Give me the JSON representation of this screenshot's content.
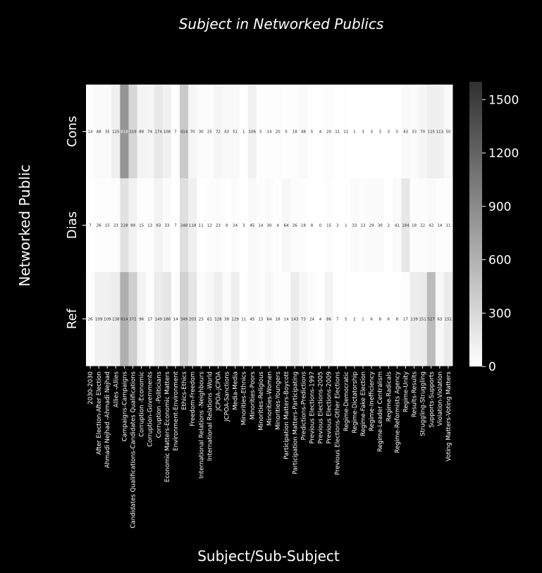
{
  "chart_data": {
    "type": "heatmap",
    "title": "Subject in Networked Publics",
    "xlabel": "Subject/Sub-Subject",
    "ylabel": "Networked Public",
    "rows": [
      "Cons",
      "Dias",
      "Ref"
    ],
    "categories": [
      "2030-2030",
      "After Election-After Election",
      "Ahmadi Nejhad -Ahmadi Nejhad",
      "Allies -Allies",
      "Campaigns-Campaigns",
      "Candidates Qualifications-Candidates Qualifications",
      "Corruption -Economic",
      "Corruption-Governments",
      "Corruption -Politicians",
      "Economic Matters-Economic Matters",
      "Environment-Environment",
      "Ethics-Ethics",
      "Freedom-Freedom",
      "International Relations -Neighbours",
      "International Relations -World",
      "JCPOA-JCPOA",
      "JCPOA-Sanctions",
      "Media-Media",
      "Minorities-Ethnics",
      "Minorities-Poors",
      "Minorities-Religious",
      "Minorities-Women",
      "Minorities-Youngers",
      "Participation Matters-Boycott",
      "Participation Matters-Participating",
      "Predictions-Predictions",
      "Previous Elections-1997",
      "Previous Elections-2005",
      "Previous Elections-2009",
      "Previous Elections-Other Elections",
      "Regime-Democratic",
      "Regime-Dictatorship",
      "Regime-Fake Election",
      "Regime-Inefficiency",
      "Regime-Leader Centralism",
      "Regime-Radicals",
      "Regime-Reformists Agency",
      "Regime-Unity",
      "Results-Results",
      "Struggling-Struggling",
      "Supports-Supports",
      "Violation-Violation",
      "Voting Matters-Voting Matters"
    ],
    "values": [
      [
        14,
        48,
        35,
        125,
        818,
        319,
        88,
        74,
        174,
        108,
        7,
        414,
        70,
        30,
        25,
        72,
        43,
        51,
        1,
        106,
        5,
        14,
        20,
        5,
        18,
        48,
        5,
        4,
        20,
        11,
        11,
        1,
        3,
        3,
        3,
        3,
        5,
        43,
        33,
        70,
        125,
        113,
        50
      ],
      [
        7,
        26,
        15,
        23,
        228,
        99,
        15,
        13,
        93,
        33,
        7,
        248,
        118,
        11,
        12,
        23,
        9,
        24,
        3,
        45,
        14,
        30,
        4,
        64,
        26,
        18,
        8,
        0,
        15,
        3,
        1,
        33,
        13,
        29,
        30,
        2,
        41,
        184,
        18,
        22,
        42,
        14,
        11
      ],
      [
        26,
        109,
        109,
        138,
        614,
        372,
        96,
        17,
        149,
        186,
        14,
        349,
        203,
        23,
        61,
        128,
        38,
        129,
        11,
        45,
        13,
        64,
        18,
        14,
        143,
        73,
        24,
        4,
        86,
        7,
        5,
        2,
        1,
        6,
        8,
        6,
        8,
        17,
        139,
        151,
        527,
        63,
        151
      ]
    ],
    "colorscale": {
      "low": "#ffffff",
      "high": "#303030",
      "min": 0,
      "max": 1600
    },
    "colorbar_ticks": [
      0,
      300,
      600,
      900,
      1200,
      1500
    ],
    "annotations": "cell values printed in each cell"
  }
}
